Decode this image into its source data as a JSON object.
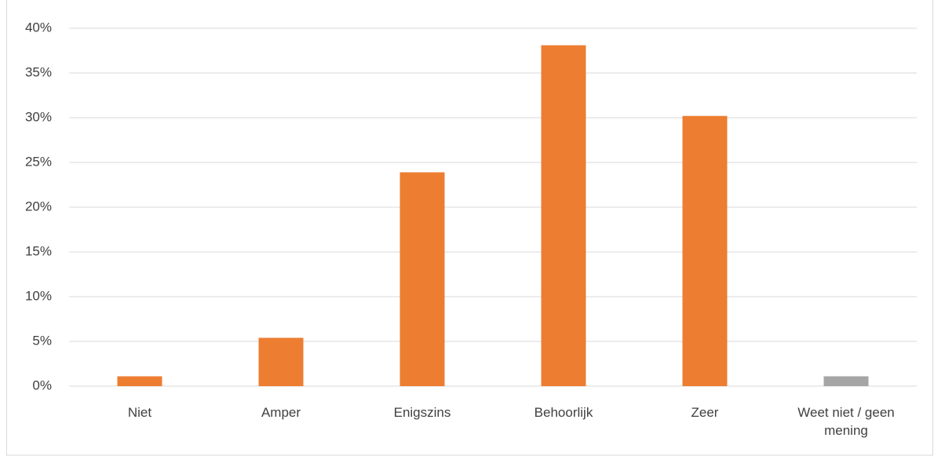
{
  "chart_data": {
    "type": "bar",
    "categories": [
      "Niet",
      "Amper",
      "Enigszins",
      "Behoorlijk",
      "Zeer",
      "Weet niet / geen mening"
    ],
    "values": [
      1.1,
      5.4,
      23.9,
      38.1,
      30.2,
      1.1
    ],
    "colors": [
      "#ed7d31",
      "#ed7d31",
      "#ed7d31",
      "#ed7d31",
      "#ed7d31",
      "#a5a5a5"
    ],
    "ylim": [
      0,
      40
    ],
    "yticks": [
      {
        "value": 0,
        "label": "0%"
      },
      {
        "value": 5,
        "label": "5%"
      },
      {
        "value": 10,
        "label": "10%"
      },
      {
        "value": 15,
        "label": "15%"
      },
      {
        "value": 20,
        "label": "20%"
      },
      {
        "value": 25,
        "label": "25%"
      },
      {
        "value": 30,
        "label": "30%"
      },
      {
        "value": 35,
        "label": "35%"
      },
      {
        "value": 40,
        "label": "40%"
      }
    ],
    "grid": true
  }
}
